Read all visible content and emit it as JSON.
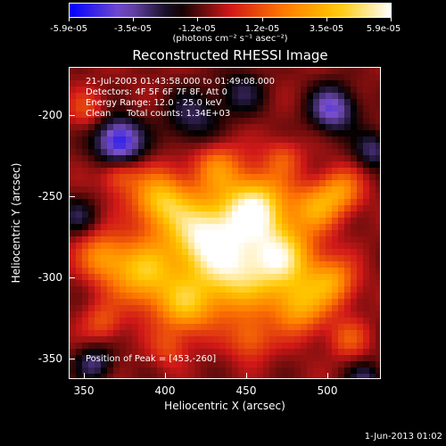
{
  "colorbar": {
    "labels": [
      "-5.9e-05",
      "-3.5e-05",
      "-1.2e-05",
      "1.2e-05",
      "3.5e-05",
      "5.9e-05"
    ],
    "unit": "(photons cm⁻² s⁻¹ asec⁻²)"
  },
  "chart_data": {
    "type": "heatmap",
    "title": "Reconstructed RHESSI Image",
    "xlabel": "Heliocentric X (arcsec)",
    "ylabel": "Heliocentric Y (arcsec)",
    "xlim": [
      340,
      530
    ],
    "ylim": [
      -365,
      -175
    ],
    "x_ticks": [
      350,
      400,
      450,
      500
    ],
    "y_ticks": [
      -200,
      -250,
      -300,
      -350
    ],
    "colorscale_range": [
      -5.9e-05,
      5.9e-05
    ],
    "colormap": [
      "#0000ff",
      "#7a50c8",
      "#000000",
      "#d01818",
      "#ff7a00",
      "#ffc800",
      "#ffffff"
    ],
    "peak_position": [
      453,
      -260
    ],
    "annotations": {
      "time_range": "21-Jul-2003 01:43:58.000 to 01:49:08.000",
      "detectors": "Detectors: 4F 5F 6F 7F 8F, Att 0",
      "energy_range": "Energy Range: 12.0 - 25.0 keV",
      "method": "Clean",
      "total_counts": "Total counts: 1.34E+03",
      "peak": "Position of Peak = [453,-260]"
    },
    "timestamp": "1-Jun-2013 01:02"
  }
}
